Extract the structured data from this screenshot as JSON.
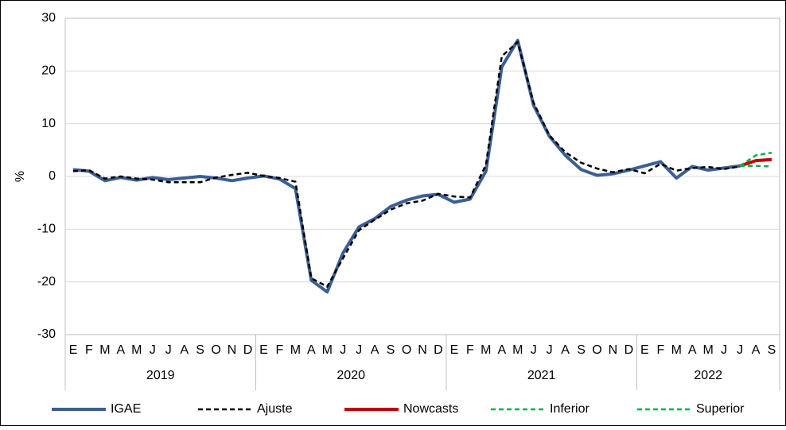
{
  "chart_data": {
    "type": "line",
    "y_label": "%",
    "categories": [
      "E",
      "F",
      "M",
      "A",
      "M",
      "J",
      "J",
      "A",
      "S",
      "O",
      "N",
      "D",
      "E",
      "F",
      "M",
      "A",
      "M",
      "J",
      "J",
      "A",
      "S",
      "O",
      "N",
      "D",
      "E",
      "F",
      "M",
      "A",
      "M",
      "J",
      "J",
      "A",
      "S",
      "O",
      "N",
      "D",
      "E",
      "F",
      "M",
      "A",
      "M",
      "J",
      "J",
      "A",
      "S"
    ],
    "category_groups": [
      "2019",
      "2020",
      "2021",
      "2022"
    ],
    "ylim": [
      -30,
      30
    ],
    "yticks": [
      -30,
      -20,
      -10,
      0,
      10,
      20,
      30
    ],
    "grid": true,
    "legend": "bottom",
    "series": [
      {
        "name": "IGAE",
        "color": "#3b5f94",
        "style": "solid",
        "values": [
          1.3,
          1.0,
          -0.8,
          -0.2,
          -0.7,
          -0.2,
          -0.6,
          -0.3,
          0.0,
          -0.3,
          -0.8,
          -0.3,
          0.1,
          -0.5,
          -2.3,
          -19.7,
          -21.9,
          -14.5,
          -9.6,
          -8.0,
          -5.7,
          -4.5,
          -3.7,
          -3.4,
          -4.9,
          -4.3,
          1.0,
          20.8,
          25.8,
          13.5,
          7.6,
          4.0,
          1.3,
          0.2,
          0.5,
          1.2,
          2.0,
          2.8,
          -0.3,
          1.9,
          1.2,
          1.6,
          2.0,
          null,
          null
        ]
      },
      {
        "name": "Ajuste",
        "color": "#000000",
        "style": "dashed",
        "values": [
          1.0,
          1.2,
          -0.4,
          0.0,
          -0.4,
          -0.6,
          -1.1,
          -1.1,
          -1.1,
          -0.2,
          0.3,
          0.7,
          0.1,
          -0.3,
          -1.0,
          -19.3,
          -20.9,
          -15.5,
          -10.2,
          -8.2,
          -6.3,
          -5.1,
          -4.6,
          -3.3,
          -3.8,
          -4.0,
          2.2,
          22.8,
          25.5,
          14.0,
          7.8,
          4.6,
          2.6,
          1.5,
          0.8,
          1.4,
          0.6,
          2.4,
          1.1,
          1.6,
          1.8,
          1.4,
          1.9,
          null,
          null
        ]
      },
      {
        "name": "Nowcasts",
        "color": "#c00000",
        "style": "solid",
        "values": [
          null,
          null,
          null,
          null,
          null,
          null,
          null,
          null,
          null,
          null,
          null,
          null,
          null,
          null,
          null,
          null,
          null,
          null,
          null,
          null,
          null,
          null,
          null,
          null,
          null,
          null,
          null,
          null,
          null,
          null,
          null,
          null,
          null,
          null,
          null,
          null,
          null,
          null,
          null,
          null,
          null,
          null,
          2.0,
          3.0,
          3.2
        ]
      },
      {
        "name": "Inferior",
        "color": "#00b050",
        "style": "dashed",
        "values": [
          null,
          null,
          null,
          null,
          null,
          null,
          null,
          null,
          null,
          null,
          null,
          null,
          null,
          null,
          null,
          null,
          null,
          null,
          null,
          null,
          null,
          null,
          null,
          null,
          null,
          null,
          null,
          null,
          null,
          null,
          null,
          null,
          null,
          null,
          null,
          null,
          null,
          null,
          null,
          null,
          null,
          null,
          2.0,
          2.0,
          1.9
        ]
      },
      {
        "name": "Superior",
        "color": "#00b050",
        "style": "dashed",
        "values": [
          null,
          null,
          null,
          null,
          null,
          null,
          null,
          null,
          null,
          null,
          null,
          null,
          null,
          null,
          null,
          null,
          null,
          null,
          null,
          null,
          null,
          null,
          null,
          null,
          null,
          null,
          null,
          null,
          null,
          null,
          null,
          null,
          null,
          null,
          null,
          null,
          null,
          null,
          null,
          null,
          null,
          null,
          2.0,
          4.0,
          4.5
        ]
      }
    ]
  }
}
